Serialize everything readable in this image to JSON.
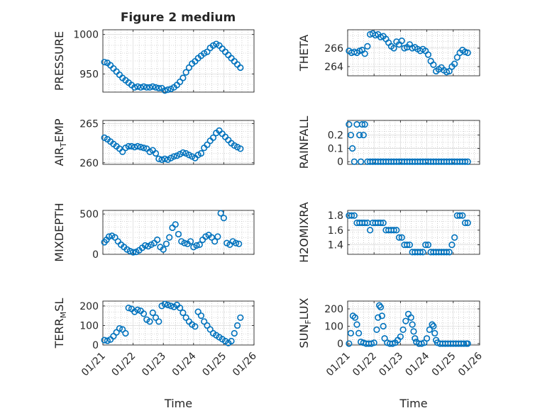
{
  "figure": {
    "title": "Figure 2 medium",
    "marker_color": "#0072BD",
    "axis_color": "#262626",
    "grid_color": "#b0b0b0",
    "xlabel": "Time",
    "xticks": [
      "01/21",
      "01/22",
      "01/23",
      "01/24",
      "01/25",
      "01/26"
    ]
  },
  "chart_data": [
    {
      "type": "scatter",
      "ylabel": "PRESSURE",
      "xlabel": "",
      "title": "Figure 2 medium",
      "xlim": [
        0,
        5
      ],
      "ylim": [
        927,
        1006
      ],
      "yticks": [
        "1000",
        "950"
      ],
      "ytick_values": [
        1000,
        950
      ],
      "x": [
        0.05,
        0.15,
        0.25,
        0.35,
        0.45,
        0.55,
        0.65,
        0.75,
        0.85,
        0.95,
        1.05,
        1.15,
        1.25,
        1.35,
        1.45,
        1.55,
        1.65,
        1.75,
        1.85,
        1.95,
        2.05,
        2.15,
        2.25,
        2.35,
        2.45,
        2.55,
        2.65,
        2.75,
        2.85,
        2.95,
        3.05,
        3.15,
        3.25,
        3.35,
        3.45,
        3.55,
        3.65,
        3.75,
        3.85,
        3.95,
        4.05,
        4.15,
        4.25,
        4.35,
        4.45,
        4.55
      ],
      "y": [
        965,
        964,
        961,
        957,
        953,
        949,
        945,
        942,
        939,
        936,
        933,
        934,
        933,
        934,
        933,
        933,
        934,
        933,
        932,
        932,
        929,
        930,
        931,
        933,
        936,
        940,
        945,
        952,
        958,
        963,
        966,
        970,
        973,
        976,
        978,
        983,
        986,
        988,
        986,
        982,
        978,
        974,
        970,
        966,
        962,
        958
      ]
    },
    {
      "type": "scatter",
      "ylabel": "THETA",
      "xlabel": "",
      "xlim": [
        0,
        5
      ],
      "ylim": [
        263.0,
        268.0
      ],
      "yticks": [
        "266",
        "264"
      ],
      "ytick_values": [
        266,
        264
      ],
      "x": [
        0.05,
        0.15,
        0.25,
        0.35,
        0.45,
        0.55,
        0.65,
        0.75,
        0.85,
        0.95,
        1.05,
        1.15,
        1.25,
        1.35,
        1.45,
        1.55,
        1.65,
        1.75,
        1.85,
        1.95,
        2.05,
        2.15,
        2.25,
        2.35,
        2.45,
        2.55,
        2.65,
        2.75,
        2.85,
        2.95,
        3.05,
        3.15,
        3.25,
        3.35,
        3.45,
        3.55,
        3.65,
        3.75,
        3.85,
        3.95,
        4.05,
        4.15,
        4.25,
        4.35,
        4.45,
        4.55
      ],
      "y": [
        265.7,
        265.5,
        265.6,
        265.5,
        265.7,
        265.8,
        265.4,
        266.2,
        267.5,
        267.6,
        267.4,
        267.5,
        267.2,
        267.3,
        267.0,
        266.6,
        266.2,
        266.0,
        266.7,
        266.4,
        266.8,
        266.0,
        266.1,
        266.4,
        266.0,
        266.1,
        265.9,
        265.7,
        265.9,
        265.7,
        265.3,
        264.6,
        264.2,
        263.5,
        263.7,
        263.9,
        263.6,
        263.4,
        263.5,
        264.0,
        264.3,
        265.0,
        265.5,
        265.8,
        265.6,
        265.5
      ]
    },
    {
      "type": "scatter",
      "ylabel": "AIR_TEMP",
      "xlabel": "",
      "xlim": [
        0,
        5
      ],
      "ylim": [
        259.8,
        265.4
      ],
      "yticks": [
        "265",
        "260"
      ],
      "ytick_values": [
        265,
        260
      ],
      "x": [
        0.05,
        0.15,
        0.25,
        0.35,
        0.45,
        0.55,
        0.65,
        0.75,
        0.85,
        0.95,
        1.05,
        1.15,
        1.25,
        1.35,
        1.45,
        1.55,
        1.65,
        1.75,
        1.85,
        1.95,
        2.05,
        2.15,
        2.25,
        2.35,
        2.45,
        2.55,
        2.65,
        2.75,
        2.85,
        2.95,
        3.05,
        3.15,
        3.25,
        3.35,
        3.45,
        3.55,
        3.65,
        3.75,
        3.85,
        3.95,
        4.05,
        4.15,
        4.25,
        4.35,
        4.45,
        4.55
      ],
      "y": [
        263.2,
        263.0,
        262.7,
        262.4,
        262.1,
        261.8,
        261.4,
        261.9,
        262.1,
        262.1,
        262.0,
        262.1,
        262.0,
        261.9,
        261.8,
        261.4,
        261.6,
        261.2,
        260.5,
        260.4,
        260.5,
        260.4,
        260.6,
        260.8,
        260.9,
        261.1,
        261.3,
        261.2,
        261.0,
        260.8,
        260.6,
        261.0,
        261.2,
        261.9,
        262.3,
        262.8,
        263.2,
        263.8,
        264.1,
        263.7,
        263.3,
        262.9,
        262.5,
        262.2,
        262.0,
        261.8
      ]
    },
    {
      "type": "scatter",
      "ylabel": "RAINFALL",
      "xlabel": "",
      "xlim": [
        0,
        5
      ],
      "ylim": [
        -0.02,
        0.31
      ],
      "yticks": [
        "0.2",
        "0.1",
        "0"
      ],
      "ytick_values": [
        0.2,
        0.1,
        0
      ],
      "x": [
        0.05,
        0.12,
        0.18,
        0.25,
        0.35,
        0.45,
        0.5,
        0.55,
        0.6,
        0.65,
        0.75,
        0.85,
        0.95,
        1.05,
        1.15,
        1.25,
        1.35,
        1.45,
        1.55,
        1.65,
        1.75,
        1.85,
        1.95,
        2.05,
        2.15,
        2.25,
        2.35,
        2.45,
        2.55,
        2.65,
        2.75,
        2.85,
        2.95,
        3.05,
        3.15,
        3.25,
        3.35,
        3.45,
        3.55,
        3.65,
        3.75,
        3.85,
        3.95,
        4.05,
        4.15,
        4.25,
        4.35,
        4.45,
        4.55
      ],
      "y": [
        0.28,
        0.2,
        0.1,
        0.0,
        0.28,
        0.2,
        0.0,
        0.28,
        0.2,
        0.28,
        0,
        0,
        0,
        0,
        0,
        0,
        0,
        0,
        0,
        0,
        0,
        0,
        0,
        0,
        0,
        0,
        0,
        0,
        0,
        0,
        0,
        0,
        0,
        0,
        0,
        0,
        0,
        0,
        0,
        0,
        0,
        0,
        0,
        0,
        0,
        0,
        0,
        0,
        0
      ]
    },
    {
      "type": "scatter",
      "ylabel": "MIXDEPTH",
      "xlabel": "",
      "xlim": [
        0,
        5
      ],
      "ylim": [
        0,
        545
      ],
      "yticks": [
        "500",
        "0"
      ],
      "ytick_values": [
        500,
        0
      ],
      "x": [
        0.05,
        0.12,
        0.2,
        0.3,
        0.4,
        0.5,
        0.6,
        0.7,
        0.8,
        0.9,
        1.0,
        1.1,
        1.2,
        1.3,
        1.4,
        1.5,
        1.6,
        1.7,
        1.8,
        1.9,
        2.0,
        2.1,
        2.2,
        2.3,
        2.4,
        2.5,
        2.6,
        2.7,
        2.8,
        2.9,
        3.0,
        3.1,
        3.2,
        3.3,
        3.4,
        3.5,
        3.6,
        3.7,
        3.8,
        3.9,
        4.0,
        4.1,
        4.2,
        4.3,
        4.4,
        4.5
      ],
      "y": [
        150,
        180,
        220,
        230,
        210,
        160,
        120,
        90,
        60,
        40,
        25,
        30,
        50,
        80,
        110,
        100,
        120,
        140,
        180,
        90,
        60,
        130,
        210,
        330,
        370,
        250,
        160,
        140,
        130,
        160,
        90,
        110,
        120,
        180,
        220,
        240,
        210,
        160,
        220,
        510,
        450,
        140,
        120,
        160,
        140,
        130
      ]
    },
    {
      "type": "scatter",
      "ylabel": "H2OMIXRA",
      "xlabel": "",
      "xlim": [
        0,
        5
      ],
      "ylim": [
        1.27,
        1.87
      ],
      "yticks": [
        "1.8",
        "1.6",
        "1.4"
      ],
      "ytick_values": [
        1.8,
        1.6,
        1.4
      ],
      "x": [
        0.05,
        0.15,
        0.25,
        0.35,
        0.45,
        0.55,
        0.65,
        0.75,
        0.85,
        0.95,
        1.05,
        1.15,
        1.25,
        1.35,
        1.45,
        1.55,
        1.65,
        1.75,
        1.85,
        1.95,
        2.05,
        2.15,
        2.25,
        2.35,
        2.45,
        2.55,
        2.65,
        2.75,
        2.85,
        2.95,
        3.05,
        3.15,
        3.25,
        3.35,
        3.45,
        3.55,
        3.65,
        3.75,
        3.85,
        3.95,
        4.05,
        4.15,
        4.25,
        4.35,
        4.45,
        4.55
      ],
      "y": [
        1.8,
        1.8,
        1.8,
        1.7,
        1.7,
        1.7,
        1.7,
        1.7,
        1.6,
        1.7,
        1.7,
        1.7,
        1.7,
        1.7,
        1.6,
        1.6,
        1.6,
        1.6,
        1.6,
        1.5,
        1.5,
        1.4,
        1.4,
        1.4,
        1.3,
        1.3,
        1.3,
        1.3,
        1.3,
        1.4,
        1.4,
        1.3,
        1.3,
        1.3,
        1.3,
        1.3,
        1.3,
        1.3,
        1.3,
        1.4,
        1.5,
        1.8,
        1.8,
        1.8,
        1.7,
        1.7
      ]
    },
    {
      "type": "scatter",
      "ylabel": "TERR_MSL",
      "xlabel": "Time",
      "xlim": [
        0,
        5
      ],
      "ylim": [
        0,
        225
      ],
      "yticks": [
        "200",
        "100",
        "0"
      ],
      "ytick_values": [
        200,
        100,
        0
      ],
      "x": [
        0.05,
        0.15,
        0.25,
        0.35,
        0.45,
        0.55,
        0.65,
        0.75,
        0.85,
        0.95,
        1.05,
        1.15,
        1.25,
        1.35,
        1.45,
        1.55,
        1.65,
        1.75,
        1.85,
        1.95,
        2.05,
        2.15,
        2.25,
        2.35,
        2.45,
        2.55,
        2.65,
        2.75,
        2.85,
        2.95,
        3.05,
        3.15,
        3.25,
        3.35,
        3.45,
        3.55,
        3.65,
        3.75,
        3.85,
        3.95,
        4.05,
        4.15,
        4.25,
        4.35,
        4.45,
        4.55
      ],
      "y": [
        25,
        22,
        28,
        45,
        65,
        85,
        80,
        60,
        190,
        185,
        170,
        180,
        175,
        160,
        130,
        120,
        165,
        140,
        120,
        200,
        210,
        205,
        200,
        195,
        205,
        190,
        165,
        140,
        120,
        105,
        95,
        170,
        150,
        120,
        100,
        80,
        60,
        50,
        40,
        30,
        20,
        10,
        20,
        60,
        100,
        140
      ]
    },
    {
      "type": "scatter",
      "ylabel": "SUN_FLUX",
      "xlabel": "Time",
      "xlim": [
        0,
        5
      ],
      "ylim": [
        -8,
        245
      ],
      "yticks": [
        "200",
        "100",
        "0"
      ],
      "ytick_values": [
        200,
        100,
        0
      ],
      "x": [
        0.05,
        0.12,
        0.2,
        0.28,
        0.35,
        0.42,
        0.5,
        0.6,
        0.7,
        0.8,
        0.9,
        1.0,
        1.1,
        1.15,
        1.2,
        1.25,
        1.3,
        1.35,
        1.4,
        1.5,
        1.6,
        1.7,
        1.8,
        1.9,
        2.0,
        2.1,
        2.2,
        2.3,
        2.4,
        2.45,
        2.5,
        2.55,
        2.6,
        2.7,
        2.8,
        2.9,
        3.0,
        3.1,
        3.2,
        3.25,
        3.3,
        3.35,
        3.4,
        3.5,
        3.6,
        3.7,
        3.8,
        3.9,
        4.0,
        4.1,
        4.2,
        4.3,
        4.4,
        4.5,
        4.55
      ],
      "y": [
        0,
        60,
        160,
        150,
        110,
        60,
        10,
        5,
        0,
        0,
        0,
        5,
        80,
        150,
        220,
        210,
        160,
        100,
        30,
        5,
        0,
        0,
        5,
        20,
        40,
        80,
        130,
        170,
        150,
        110,
        70,
        30,
        10,
        0,
        0,
        5,
        30,
        80,
        110,
        100,
        60,
        20,
        5,
        0,
        0,
        0,
        0,
        0,
        0,
        0,
        0,
        0,
        0,
        0,
        0
      ]
    }
  ]
}
